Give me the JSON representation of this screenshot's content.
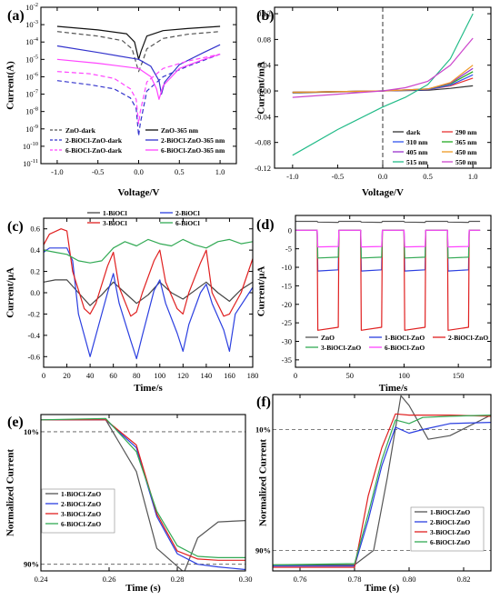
{
  "chart_data": [
    {
      "panel": "(a)",
      "type": "line",
      "xlabel": "Voltage/V",
      "ylabel": "Current(A)",
      "xlim": [
        -1.2,
        1.2
      ],
      "ylim": [
        1e-11,
        0.01
      ],
      "yscale": "log",
      "xticks": [
        -1.0,
        -0.5,
        0.0,
        0.5,
        1.0
      ],
      "xtick_labels": [
        "-1.0",
        "-0.5",
        "0.0",
        "0.5",
        "1.0"
      ],
      "yticks": [
        1e-11,
        1e-10,
        1e-09,
        1e-08,
        1e-07,
        1e-06,
        1e-05,
        0.0001,
        0.001,
        0.01
      ],
      "ytick_exponents": [
        "-11",
        "-10",
        "-9",
        "-8",
        "-7",
        "-6",
        "-5",
        "-4",
        "-3",
        "-2"
      ],
      "ytick_base": "10",
      "legend_position": "bottom",
      "series": [
        {
          "name": "ZnO-dark",
          "color": "#555555",
          "dash": "dashed",
          "x": [
            -1.0,
            -0.5,
            -0.2,
            -0.08,
            0.0,
            0.05,
            0.1,
            0.3,
            0.6,
            1.0
          ],
          "y": [
            0.0004,
            0.00022,
            0.00012,
            4e-05,
            2e-06,
            8e-06,
            4e-05,
            0.00016,
            0.00028,
            0.0004
          ]
        },
        {
          "name": "ZnO-365 nm",
          "color": "#111111",
          "dash": "solid",
          "x": [
            -1.0,
            -0.5,
            -0.15,
            -0.05,
            0.0,
            0.03,
            0.1,
            0.3,
            0.6,
            1.0
          ],
          "y": [
            0.0008,
            0.0005,
            0.0003,
            0.0001,
            1e-05,
            3e-05,
            0.00022,
            0.00045,
            0.0006,
            0.0008
          ]
        },
        {
          "name": "2-BiOCl-ZnO-dark",
          "color": "#3333cc",
          "dash": "dashed",
          "x": [
            -1.0,
            -0.6,
            -0.3,
            -0.1,
            -0.03,
            0.0,
            0.02,
            0.1,
            0.3,
            0.6,
            1.0
          ],
          "y": [
            6e-07,
            3.5e-07,
            2e-07,
            6e-08,
            1.5e-08,
            4e-10,
            2e-09,
            1.5e-07,
            1e-06,
            4e-06,
            2e-05
          ]
        },
        {
          "name": "2-BiOCl-ZnO-365 nm",
          "color": "#3333cc",
          "dash": "solid",
          "x": [
            -1.0,
            -0.5,
            0.0,
            0.15,
            0.25,
            0.28,
            0.32,
            0.5,
            0.8,
            1.0
          ],
          "y": [
            6e-05,
            2.5e-05,
            1e-05,
            4e-06,
            6e-07,
            1e-07,
            5e-07,
            5e-06,
            2.5e-05,
            7e-05
          ]
        },
        {
          "name": "6-BiOCl-ZnO-dark",
          "color": "#ff44ff",
          "dash": "dashed",
          "x": [
            -1.0,
            -0.6,
            -0.3,
            -0.1,
            -0.03,
            0.0,
            0.02,
            0.1,
            0.3,
            0.6,
            1.0
          ],
          "y": [
            2e-06,
            1.5e-06,
            8e-07,
            2e-07,
            5e-08,
            2e-09,
            1e-08,
            5e-07,
            3e-06,
            8e-06,
            2e-05
          ]
        },
        {
          "name": "6-BiOCl-ZnO-365 nm",
          "color": "#ff44ff",
          "dash": "solid",
          "x": [
            -1.0,
            -0.5,
            0.0,
            0.15,
            0.22,
            0.25,
            0.3,
            0.5,
            0.8,
            1.0
          ],
          "y": [
            1e-05,
            6e-06,
            3e-06,
            1e-06,
            2e-07,
            5e-08,
            3e-07,
            3e-06,
            1e-05,
            2e-05
          ]
        }
      ]
    },
    {
      "panel": "(b)",
      "type": "line",
      "xlabel": "Voltage/V",
      "ylabel": "Current/mA",
      "xlim": [
        -1.2,
        1.2
      ],
      "ylim": [
        -0.12,
        0.13
      ],
      "xticks": [
        -1.0,
        -0.5,
        0.0,
        0.5,
        1.0
      ],
      "xtick_labels": [
        "-1.0",
        "-0.5",
        "0.0",
        "0.5",
        "1.0"
      ],
      "yticks": [
        -0.12,
        -0.08,
        -0.04,
        0.0,
        0.04,
        0.08,
        0.12
      ],
      "ytick_labels": [
        "-0.12",
        "-0.08",
        "-0.04",
        "0.00",
        "0.04",
        "0.08",
        "0.12"
      ],
      "vline": 0,
      "legend_position": "bottom-right",
      "series": [
        {
          "name": "dark",
          "color": "#333333",
          "x": [
            -1.0,
            0.0,
            0.5,
            0.75,
            1.0
          ],
          "y": [
            -0.003,
            0.0,
            0.001,
            0.004,
            0.008
          ]
        },
        {
          "name": "290 nm",
          "color": "#e83232",
          "x": [
            -1.0,
            0.0,
            0.5,
            0.75,
            1.0
          ],
          "y": [
            -0.002,
            0.0,
            0.002,
            0.008,
            0.02
          ]
        },
        {
          "name": "310 nm",
          "color": "#3355ee",
          "x": [
            -1.0,
            0.0,
            0.5,
            0.75,
            1.0
          ],
          "y": [
            -0.002,
            0.0,
            0.002,
            0.009,
            0.025
          ]
        },
        {
          "name": "365 nm",
          "color": "#22aa22",
          "x": [
            -1.0,
            0.0,
            0.5,
            0.75,
            1.0
          ],
          "y": [
            -0.002,
            0.0,
            0.003,
            0.011,
            0.03
          ]
        },
        {
          "name": "405 nm",
          "color": "#9933cc",
          "x": [
            -1.0,
            0.0,
            0.5,
            0.75,
            1.0
          ],
          "y": [
            -0.002,
            0.0,
            0.003,
            0.012,
            0.035
          ]
        },
        {
          "name": "450 nm",
          "color": "#ee9922",
          "x": [
            -1.0,
            0.0,
            0.5,
            0.75,
            1.0
          ],
          "y": [
            -0.002,
            0.0,
            0.003,
            0.013,
            0.04
          ]
        },
        {
          "name": "515 nm",
          "color": "#22bb88",
          "x": [
            -1.0,
            -0.5,
            0.0,
            0.25,
            0.5,
            0.75,
            1.0
          ],
          "y": [
            -0.1,
            -0.06,
            -0.025,
            -0.01,
            0.01,
            0.05,
            0.12
          ]
        },
        {
          "name": "550 nm",
          "color": "#cc44cc",
          "x": [
            -1.0,
            -0.5,
            0.0,
            0.25,
            0.5,
            0.75,
            1.0
          ],
          "y": [
            -0.01,
            -0.005,
            0.0,
            0.005,
            0.015,
            0.04,
            0.082
          ]
        }
      ]
    },
    {
      "panel": "(c)",
      "type": "line",
      "xlabel": "Time/s",
      "ylabel": "Current/μA",
      "xlim": [
        0,
        180
      ],
      "ylim": [
        -0.7,
        0.7
      ],
      "xticks": [
        0,
        20,
        40,
        60,
        80,
        100,
        120,
        140,
        160,
        180
      ],
      "xtick_labels": [
        "0",
        "20",
        "40",
        "60",
        "80",
        "100",
        "120",
        "140",
        "160",
        "180"
      ],
      "yticks": [
        -0.6,
        -0.4,
        -0.2,
        0.0,
        0.2,
        0.4,
        0.6
      ],
      "ytick_labels": [
        "-0.6",
        "-0.4",
        "-0.2",
        "0.0",
        "0.2",
        "0.4",
        "0.6"
      ],
      "legend_position": "top",
      "series": [
        {
          "name": "1-BiOCl",
          "color": "#444444",
          "x": [
            0,
            10,
            20,
            30,
            40,
            50,
            60,
            70,
            80,
            90,
            100,
            110,
            120,
            130,
            140,
            150,
            160,
            170,
            180
          ],
          "y": [
            0.1,
            0.12,
            0.12,
            0.0,
            -0.12,
            -0.02,
            0.1,
            0.0,
            -0.1,
            -0.02,
            0.1,
            0.0,
            -0.06,
            0.02,
            0.1,
            0.0,
            -0.08,
            0.03,
            0.1
          ]
        },
        {
          "name": "2-BiOCl",
          "color": "#2b3fe0",
          "x": [
            0,
            5,
            20,
            25,
            30,
            40,
            45,
            55,
            60,
            65,
            75,
            80,
            85,
            95,
            100,
            105,
            115,
            120,
            125,
            135,
            140,
            145,
            155,
            160,
            165,
            180
          ],
          "y": [
            0.38,
            0.42,
            0.42,
            0.3,
            -0.2,
            -0.6,
            -0.4,
            0.0,
            0.18,
            -0.1,
            -0.45,
            -0.62,
            -0.4,
            0.02,
            0.12,
            -0.1,
            -0.38,
            -0.55,
            -0.3,
            0.0,
            0.08,
            -0.1,
            -0.35,
            -0.55,
            -0.2,
            0.05
          ]
        },
        {
          "name": "3-BiOCl",
          "color": "#e02020",
          "x": [
            0,
            5,
            15,
            20,
            25,
            35,
            40,
            45,
            55,
            60,
            65,
            75,
            80,
            85,
            95,
            100,
            105,
            115,
            120,
            125,
            135,
            140,
            145,
            155,
            160,
            170,
            180
          ],
          "y": [
            0.45,
            0.55,
            0.6,
            0.58,
            0.2,
            -0.15,
            -0.2,
            -0.1,
            0.25,
            0.38,
            0.05,
            -0.22,
            -0.18,
            0.0,
            0.3,
            0.4,
            0.1,
            -0.15,
            -0.2,
            0.0,
            0.28,
            0.4,
            0.0,
            -0.22,
            -0.2,
            0.0,
            0.32
          ]
        },
        {
          "name": "6-BiOCl",
          "color": "#33aa55",
          "x": [
            0,
            10,
            20,
            30,
            40,
            50,
            60,
            70,
            80,
            90,
            100,
            110,
            120,
            130,
            140,
            150,
            160,
            170,
            180
          ],
          "y": [
            0.4,
            0.38,
            0.36,
            0.3,
            0.28,
            0.3,
            0.42,
            0.48,
            0.44,
            0.5,
            0.46,
            0.44,
            0.5,
            0.45,
            0.42,
            0.48,
            0.5,
            0.46,
            0.48
          ]
        }
      ]
    },
    {
      "panel": "(d)",
      "type": "line",
      "xlabel": "Time/s",
      "ylabel": "Current/μA",
      "xlim": [
        0,
        180
      ],
      "ylim": [
        -37,
        4
      ],
      "xticks": [
        0,
        50,
        100,
        150
      ],
      "xtick_labels": [
        "0",
        "50",
        "100",
        "150"
      ],
      "yticks": [
        -35,
        -30,
        -25,
        -20,
        -15,
        -10,
        -5,
        0
      ],
      "ytick_labels": [
        "-35",
        "-30",
        "-25",
        "-20",
        "-15",
        "-10",
        "-5",
        "0"
      ],
      "legend_position": "bottom",
      "on_intervals": [
        [
          20,
          40
        ],
        [
          60,
          80
        ],
        [
          100,
          120
        ],
        [
          140,
          160
        ]
      ],
      "end_time": 170,
      "series": [
        {
          "name": "ZnO",
          "color": "#555555",
          "on": 2.2,
          "off": 2.4
        },
        {
          "name": "1-BiOCl-ZnO",
          "color": "#2b3fe0",
          "on": -11,
          "off": 0
        },
        {
          "name": "2-BiOCl-ZnO",
          "color": "#e02020",
          "on": -27,
          "off": 0
        },
        {
          "name": "3-BiOCl-ZnO",
          "color": "#33aa55",
          "on": -7.5,
          "off": 0
        },
        {
          "name": "6-BiOCl-ZnO",
          "color": "#ff44ff",
          "on": -4.5,
          "off": 0
        }
      ]
    },
    {
      "panel": "(e)",
      "type": "line",
      "xlabel": "Time (s)",
      "ylabel": "Normalized Current",
      "xlim": [
        0.24,
        0.3
      ],
      "ylim": [
        -0.05,
        1.13
      ],
      "xticks": [
        0.24,
        0.26,
        0.28,
        0.3
      ],
      "xtick_labels": [
        "0.24",
        "0.26",
        "0.28",
        "0.30"
      ],
      "ytick_positions": [
        0.0,
        1.0
      ],
      "ytick_labels": [
        "90%",
        "10%"
      ],
      "hlines": [
        0.0,
        1.0
      ],
      "legend_position": "bottom-left",
      "series": [
        {
          "name": "1-BiOCl-ZnO",
          "color": "#555555",
          "x": [
            0.24,
            0.259,
            0.268,
            0.274,
            0.282,
            0.286,
            0.292,
            0.3
          ],
          "y": [
            1.09,
            1.09,
            0.7,
            0.12,
            -0.06,
            0.2,
            0.32,
            0.33
          ]
        },
        {
          "name": "2-BiOCl-ZnO",
          "color": "#2b3fe0",
          "x": [
            0.24,
            0.259,
            0.268,
            0.274,
            0.28,
            0.286,
            0.292,
            0.3
          ],
          "y": [
            1.09,
            1.09,
            0.88,
            0.36,
            0.08,
            0.0,
            -0.02,
            -0.04
          ]
        },
        {
          "name": "3-BiOCl-ZnO",
          "color": "#e02020",
          "x": [
            0.24,
            0.259,
            0.268,
            0.274,
            0.28,
            0.286,
            0.292,
            0.3
          ],
          "y": [
            1.09,
            1.09,
            0.9,
            0.38,
            0.1,
            0.04,
            0.03,
            0.03
          ]
        },
        {
          "name": "6-BiOCl-ZnO",
          "color": "#33aa55",
          "x": [
            0.24,
            0.259,
            0.268,
            0.274,
            0.28,
            0.286,
            0.292,
            0.3
          ],
          "y": [
            1.09,
            1.1,
            0.85,
            0.4,
            0.14,
            0.06,
            0.05,
            0.05
          ]
        }
      ]
    },
    {
      "panel": "(f)",
      "type": "line",
      "xlabel": "Time (s)",
      "ylabel": "Normalized Current",
      "xlim": [
        0.75,
        0.83
      ],
      "ylim": [
        -0.17,
        1.29
      ],
      "xticks": [
        0.76,
        0.78,
        0.8,
        0.82
      ],
      "xtick_labels": [
        "0.76",
        "0.78",
        "0.80",
        "0.82"
      ],
      "ytick_positions": [
        0.0,
        1.0
      ],
      "ytick_labels": [
        "90%",
        "10%"
      ],
      "hlines": [
        0.0,
        1.0
      ],
      "legend_position": "bottom-right",
      "series": [
        {
          "name": "1-BiOCl-ZnO",
          "color": "#555555",
          "x": [
            0.75,
            0.78,
            0.787,
            0.792,
            0.797,
            0.8,
            0.807,
            0.815,
            0.83
          ],
          "y": [
            -0.12,
            -0.12,
            0.0,
            0.6,
            1.28,
            1.2,
            0.92,
            0.95,
            1.12
          ]
        },
        {
          "name": "2-BiOCl-ZnO",
          "color": "#2b3fe0",
          "x": [
            0.75,
            0.78,
            0.785,
            0.79,
            0.795,
            0.8,
            0.805,
            0.815,
            0.83
          ],
          "y": [
            -0.13,
            -0.13,
            0.25,
            0.7,
            1.02,
            0.97,
            1.0,
            1.05,
            1.06
          ]
        },
        {
          "name": "3-BiOCl-ZnO",
          "color": "#e02020",
          "x": [
            0.75,
            0.78,
            0.785,
            0.79,
            0.795,
            0.8,
            0.805,
            0.815,
            0.83
          ],
          "y": [
            -0.14,
            -0.14,
            0.45,
            0.85,
            1.13,
            1.12,
            1.12,
            1.12,
            1.11
          ]
        },
        {
          "name": "6-BiOCl-ZnO",
          "color": "#33aa55",
          "x": [
            0.75,
            0.78,
            0.785,
            0.79,
            0.795,
            0.8,
            0.805,
            0.815,
            0.83
          ],
          "y": [
            -0.12,
            -0.11,
            0.3,
            0.75,
            1.08,
            1.05,
            1.1,
            1.11,
            1.12
          ]
        }
      ]
    }
  ]
}
